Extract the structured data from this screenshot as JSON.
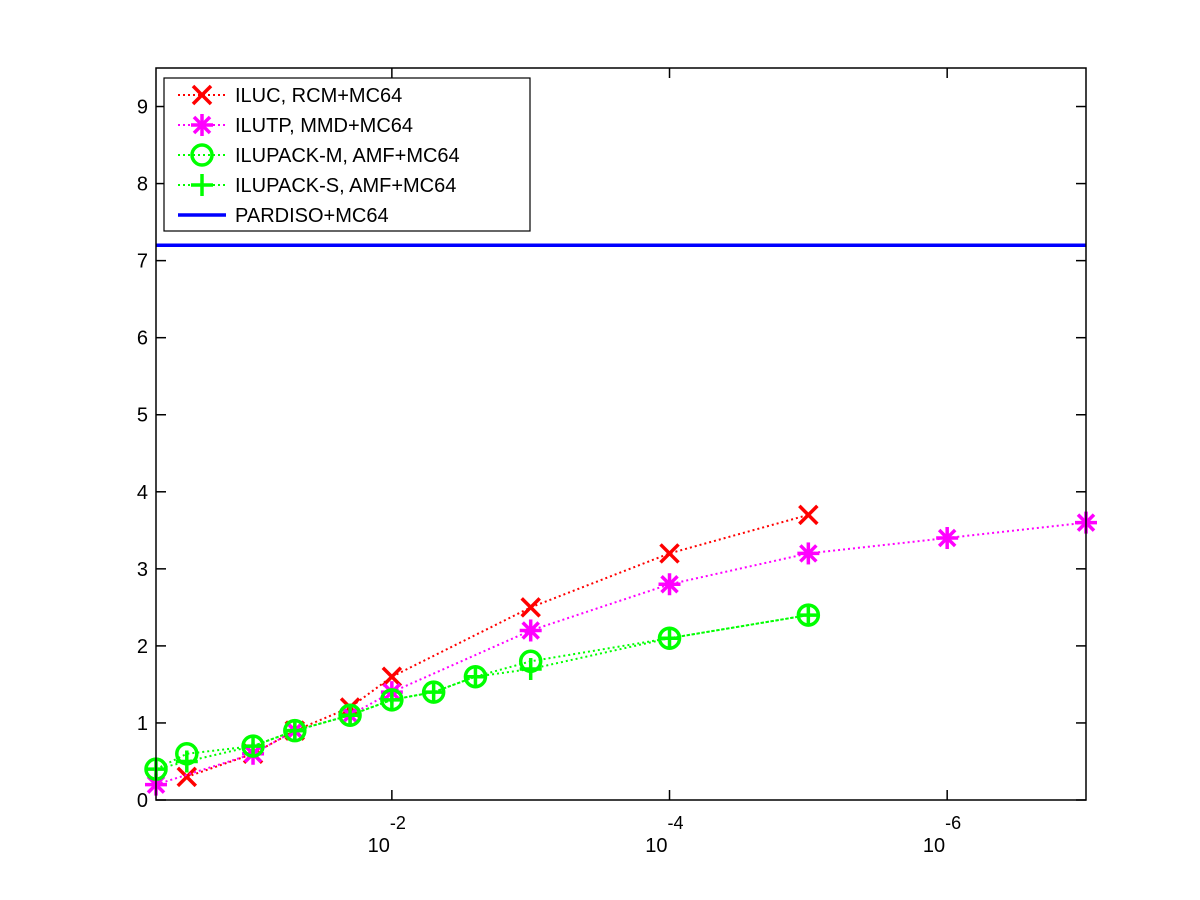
{
  "chart_data": {
    "type": "line",
    "title": "",
    "xlabel": "",
    "ylabel": "",
    "x_scale": "log",
    "x_direction": "decreasing",
    "xlim": [
      0.5,
      1e-07
    ],
    "ylim": [
      0,
      9.5
    ],
    "y_ticks": [
      0,
      1,
      2,
      3,
      4,
      5,
      6,
      7,
      8,
      9
    ],
    "x_ticks": [
      {
        "value": 0.01,
        "base": "10",
        "exponent": "-2"
      },
      {
        "value": 0.0001,
        "base": "10",
        "exponent": "-4"
      },
      {
        "value": 1e-06,
        "base": "10",
        "exponent": "-6"
      }
    ],
    "grid": false,
    "legend_position": "top-left",
    "series": [
      {
        "name": "ILUC, RCM+MC64",
        "color": "#ff0000",
        "marker": "x",
        "line_style": "dotted",
        "x": [
          0.3,
          0.1,
          0.05,
          0.02,
          0.01,
          0.001,
          0.0001,
          1e-05
        ],
        "y": [
          0.3,
          0.6,
          0.9,
          1.2,
          1.6,
          2.5,
          3.2,
          3.7
        ]
      },
      {
        "name": "ILUTP, MMD+MC64",
        "color": "#ff00ff",
        "marker": "asterisk",
        "line_style": "dotted",
        "x": [
          0.5,
          0.1,
          0.05,
          0.02,
          0.01,
          0.001,
          0.0001,
          1e-05,
          1e-06,
          1e-07
        ],
        "y": [
          0.2,
          0.6,
          0.9,
          1.1,
          1.4,
          2.2,
          2.8,
          3.2,
          3.4,
          3.6
        ]
      },
      {
        "name": "ILUPACK-M, AMF+MC64",
        "color": "#00ff00",
        "marker": "circle",
        "line_style": "dotted",
        "x": [
          0.5,
          0.3,
          0.1,
          0.05,
          0.02,
          0.01,
          0.005,
          0.0025,
          0.001,
          0.0001,
          1e-05
        ],
        "y": [
          0.4,
          0.6,
          0.7,
          0.9,
          1.1,
          1.3,
          1.4,
          1.6,
          1.8,
          2.1,
          2.4
        ]
      },
      {
        "name": "ILUPACK-S, AMF+MC64",
        "color": "#00ff00",
        "marker": "plus",
        "line_style": "dotted",
        "x": [
          0.5,
          0.3,
          0.1,
          0.05,
          0.02,
          0.01,
          0.005,
          0.0025,
          0.001,
          0.0001,
          1e-05
        ],
        "y": [
          0.4,
          0.5,
          0.7,
          0.9,
          1.1,
          1.3,
          1.4,
          1.6,
          1.7,
          2.1,
          2.4
        ]
      },
      {
        "name": "PARDISO+MC64",
        "color": "#0000ff",
        "marker": "none",
        "line_style": "solid",
        "x": [
          0.5,
          1e-07
        ],
        "y": [
          7.2,
          7.2
        ]
      }
    ]
  }
}
